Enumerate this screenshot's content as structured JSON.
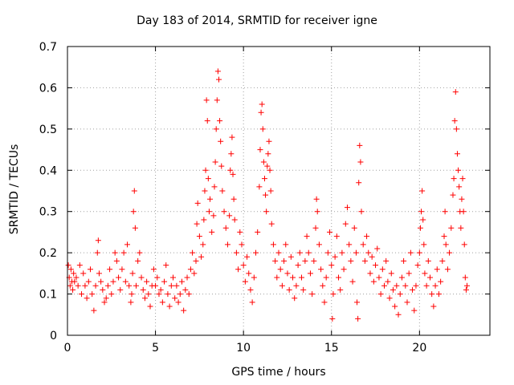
{
  "chart_data": {
    "type": "scatter",
    "title": "Day 183 of 2014, SRMTID for receiver igne",
    "xlabel": "GPS time / hours",
    "ylabel": "SRMTID / TECUs",
    "xlim": [
      0,
      24
    ],
    "ylim": [
      0,
      0.7
    ],
    "xticks": [
      0,
      5,
      10,
      15,
      20
    ],
    "yticks": [
      0,
      0.1,
      0.2,
      0.3,
      0.4,
      0.5,
      0.6,
      0.7
    ],
    "grid": true,
    "marker": "+",
    "color": "#ff0000",
    "series": [
      {
        "name": "SRMTID",
        "points": [
          [
            0.05,
            0.17
          ],
          [
            0.1,
            0.14
          ],
          [
            0.15,
            0.12
          ],
          [
            0.2,
            0.16
          ],
          [
            0.25,
            0.13
          ],
          [
            0.3,
            0.11
          ],
          [
            0.35,
            0.15
          ],
          [
            0.4,
            0.13
          ],
          [
            0.5,
            0.14
          ],
          [
            0.6,
            0.12
          ],
          [
            0.7,
            0.17
          ],
          [
            0.8,
            0.1
          ],
          [
            0.9,
            0.15
          ],
          [
            1.0,
            0.12
          ],
          [
            1.1,
            0.09
          ],
          [
            1.2,
            0.13
          ],
          [
            1.3,
            0.16
          ],
          [
            1.4,
            0.1
          ],
          [
            1.5,
            0.06
          ],
          [
            1.6,
            0.12
          ],
          [
            1.7,
            0.2
          ],
          [
            1.75,
            0.23
          ],
          [
            1.8,
            0.15
          ],
          [
            1.9,
            0.13
          ],
          [
            2.0,
            0.11
          ],
          [
            2.1,
            0.08
          ],
          [
            2.2,
            0.09
          ],
          [
            2.3,
            0.12
          ],
          [
            2.4,
            0.16
          ],
          [
            2.5,
            0.1
          ],
          [
            2.6,
            0.13
          ],
          [
            2.7,
            0.2
          ],
          [
            2.8,
            0.18
          ],
          [
            2.9,
            0.14
          ],
          [
            3.0,
            0.11
          ],
          [
            3.1,
            0.16
          ],
          [
            3.2,
            0.2
          ],
          [
            3.3,
            0.13
          ],
          [
            3.4,
            0.22
          ],
          [
            3.5,
            0.12
          ],
          [
            3.6,
            0.08
          ],
          [
            3.65,
            0.1
          ],
          [
            3.7,
            0.15
          ],
          [
            3.75,
            0.3
          ],
          [
            3.8,
            0.35
          ],
          [
            3.85,
            0.26
          ],
          [
            3.9,
            0.12
          ],
          [
            4.0,
            0.18
          ],
          [
            4.1,
            0.2
          ],
          [
            4.2,
            0.14
          ],
          [
            4.3,
            0.11
          ],
          [
            4.4,
            0.09
          ],
          [
            4.5,
            0.13
          ],
          [
            4.6,
            0.1
          ],
          [
            4.7,
            0.07
          ],
          [
            4.8,
            0.12
          ],
          [
            4.9,
            0.16
          ],
          [
            5.0,
            0.12
          ],
          [
            5.1,
            0.14
          ],
          [
            5.2,
            0.1
          ],
          [
            5.3,
            0.11
          ],
          [
            5.4,
            0.08
          ],
          [
            5.5,
            0.13
          ],
          [
            5.6,
            0.17
          ],
          [
            5.7,
            0.1
          ],
          [
            5.8,
            0.07
          ],
          [
            5.9,
            0.12
          ],
          [
            6.0,
            0.14
          ],
          [
            6.1,
            0.09
          ],
          [
            6.2,
            0.12
          ],
          [
            6.3,
            0.08
          ],
          [
            6.4,
            0.1
          ],
          [
            6.5,
            0.13
          ],
          [
            6.6,
            0.06
          ],
          [
            6.7,
            0.11
          ],
          [
            6.8,
            0.14
          ],
          [
            6.9,
            0.1
          ],
          [
            7.0,
            0.16
          ],
          [
            7.1,
            0.2
          ],
          [
            7.2,
            0.15
          ],
          [
            7.3,
            0.18
          ],
          [
            7.35,
            0.27
          ],
          [
            7.4,
            0.32
          ],
          [
            7.5,
            0.24
          ],
          [
            7.6,
            0.19
          ],
          [
            7.7,
            0.22
          ],
          [
            7.75,
            0.28
          ],
          [
            7.8,
            0.35
          ],
          [
            7.85,
            0.4
          ],
          [
            7.9,
            0.57
          ],
          [
            7.95,
            0.52
          ],
          [
            8.0,
            0.38
          ],
          [
            8.05,
            0.3
          ],
          [
            8.1,
            0.33
          ],
          [
            8.2,
            0.25
          ],
          [
            8.3,
            0.29
          ],
          [
            8.35,
            0.36
          ],
          [
            8.4,
            0.42
          ],
          [
            8.45,
            0.5
          ],
          [
            8.5,
            0.57
          ],
          [
            8.55,
            0.64
          ],
          [
            8.6,
            0.62
          ],
          [
            8.65,
            0.52
          ],
          [
            8.7,
            0.47
          ],
          [
            8.75,
            0.41
          ],
          [
            8.8,
            0.35
          ],
          [
            8.9,
            0.3
          ],
          [
            9.0,
            0.26
          ],
          [
            9.1,
            0.22
          ],
          [
            9.2,
            0.29
          ],
          [
            9.25,
            0.4
          ],
          [
            9.3,
            0.44
          ],
          [
            9.35,
            0.48
          ],
          [
            9.4,
            0.39
          ],
          [
            9.45,
            0.33
          ],
          [
            9.5,
            0.28
          ],
          [
            9.6,
            0.2
          ],
          [
            9.7,
            0.16
          ],
          [
            9.8,
            0.25
          ],
          [
            9.9,
            0.22
          ],
          [
            10.0,
            0.17
          ],
          [
            10.1,
            0.13
          ],
          [
            10.2,
            0.19
          ],
          [
            10.3,
            0.15
          ],
          [
            10.4,
            0.11
          ],
          [
            10.5,
            0.08
          ],
          [
            10.6,
            0.14
          ],
          [
            10.7,
            0.2
          ],
          [
            10.8,
            0.25
          ],
          [
            10.9,
            0.36
          ],
          [
            10.95,
            0.45
          ],
          [
            11.0,
            0.54
          ],
          [
            11.05,
            0.56
          ],
          [
            11.1,
            0.5
          ],
          [
            11.15,
            0.42
          ],
          [
            11.2,
            0.38
          ],
          [
            11.25,
            0.34
          ],
          [
            11.3,
            0.3
          ],
          [
            11.35,
            0.41
          ],
          [
            11.4,
            0.44
          ],
          [
            11.45,
            0.47
          ],
          [
            11.5,
            0.4
          ],
          [
            11.55,
            0.35
          ],
          [
            11.6,
            0.27
          ],
          [
            11.7,
            0.22
          ],
          [
            11.8,
            0.18
          ],
          [
            11.9,
            0.14
          ],
          [
            12.0,
            0.2
          ],
          [
            12.1,
            0.16
          ],
          [
            12.2,
            0.12
          ],
          [
            12.3,
            0.18
          ],
          [
            12.4,
            0.22
          ],
          [
            12.5,
            0.15
          ],
          [
            12.6,
            0.11
          ],
          [
            12.7,
            0.19
          ],
          [
            12.8,
            0.14
          ],
          [
            12.9,
            0.09
          ],
          [
            13.0,
            0.12
          ],
          [
            13.1,
            0.17
          ],
          [
            13.2,
            0.2
          ],
          [
            13.3,
            0.14
          ],
          [
            13.4,
            0.11
          ],
          [
            13.5,
            0.18
          ],
          [
            13.6,
            0.24
          ],
          [
            13.7,
            0.2
          ],
          [
            13.8,
            0.15
          ],
          [
            13.9,
            0.1
          ],
          [
            14.0,
            0.18
          ],
          [
            14.1,
            0.26
          ],
          [
            14.15,
            0.33
          ],
          [
            14.2,
            0.3
          ],
          [
            14.3,
            0.22
          ],
          [
            14.4,
            0.16
          ],
          [
            14.5,
            0.12
          ],
          [
            14.6,
            0.08
          ],
          [
            14.7,
            0.14
          ],
          [
            14.8,
            0.2
          ],
          [
            14.9,
            0.25
          ],
          [
            15.0,
            0.17
          ],
          [
            15.05,
            0.04
          ],
          [
            15.1,
            0.1
          ],
          [
            15.2,
            0.19
          ],
          [
            15.3,
            0.24
          ],
          [
            15.4,
            0.14
          ],
          [
            15.5,
            0.11
          ],
          [
            15.6,
            0.2
          ],
          [
            15.7,
            0.16
          ],
          [
            15.8,
            0.27
          ],
          [
            15.9,
            0.31
          ],
          [
            16.0,
            0.22
          ],
          [
            16.1,
            0.18
          ],
          [
            16.2,
            0.13
          ],
          [
            16.3,
            0.26
          ],
          [
            16.4,
            0.2
          ],
          [
            16.45,
            0.08
          ],
          [
            16.5,
            0.04
          ],
          [
            16.55,
            0.37
          ],
          [
            16.6,
            0.46
          ],
          [
            16.65,
            0.42
          ],
          [
            16.7,
            0.3
          ],
          [
            16.8,
            0.22
          ],
          [
            16.9,
            0.18
          ],
          [
            17.0,
            0.24
          ],
          [
            17.1,
            0.2
          ],
          [
            17.2,
            0.15
          ],
          [
            17.3,
            0.19
          ],
          [
            17.4,
            0.13
          ],
          [
            17.5,
            0.17
          ],
          [
            17.6,
            0.21
          ],
          [
            17.7,
            0.14
          ],
          [
            17.8,
            0.1
          ],
          [
            17.9,
            0.16
          ],
          [
            18.0,
            0.12
          ],
          [
            18.1,
            0.18
          ],
          [
            18.2,
            0.13
          ],
          [
            18.3,
            0.09
          ],
          [
            18.4,
            0.15
          ],
          [
            18.5,
            0.11
          ],
          [
            18.6,
            0.07
          ],
          [
            18.7,
            0.12
          ],
          [
            18.8,
            0.05
          ],
          [
            18.9,
            0.1
          ],
          [
            19.0,
            0.14
          ],
          [
            19.1,
            0.18
          ],
          [
            19.2,
            0.12
          ],
          [
            19.3,
            0.08
          ],
          [
            19.4,
            0.15
          ],
          [
            19.5,
            0.2
          ],
          [
            19.6,
            0.11
          ],
          [
            19.7,
            0.06
          ],
          [
            19.8,
            0.12
          ],
          [
            19.9,
            0.17
          ],
          [
            20.0,
            0.2
          ],
          [
            20.05,
            0.26
          ],
          [
            20.1,
            0.3
          ],
          [
            20.15,
            0.35
          ],
          [
            20.2,
            0.28
          ],
          [
            20.25,
            0.22
          ],
          [
            20.3,
            0.15
          ],
          [
            20.4,
            0.12
          ],
          [
            20.5,
            0.18
          ],
          [
            20.6,
            0.14
          ],
          [
            20.7,
            0.1
          ],
          [
            20.8,
            0.07
          ],
          [
            20.9,
            0.12
          ],
          [
            21.0,
            0.16
          ],
          [
            21.1,
            0.1
          ],
          [
            21.2,
            0.13
          ],
          [
            21.3,
            0.18
          ],
          [
            21.4,
            0.24
          ],
          [
            21.45,
            0.3
          ],
          [
            21.5,
            0.22
          ],
          [
            21.6,
            0.16
          ],
          [
            21.7,
            0.2
          ],
          [
            21.8,
            0.26
          ],
          [
            21.9,
            0.34
          ],
          [
            21.95,
            0.38
          ],
          [
            22.0,
            0.52
          ],
          [
            22.05,
            0.59
          ],
          [
            22.1,
            0.5
          ],
          [
            22.15,
            0.44
          ],
          [
            22.2,
            0.4
          ],
          [
            22.25,
            0.36
          ],
          [
            22.3,
            0.3
          ],
          [
            22.35,
            0.26
          ],
          [
            22.4,
            0.33
          ],
          [
            22.45,
            0.38
          ],
          [
            22.5,
            0.3
          ],
          [
            22.55,
            0.22
          ],
          [
            22.6,
            0.14
          ],
          [
            22.65,
            0.11
          ],
          [
            22.7,
            0.12
          ]
        ]
      }
    ]
  }
}
